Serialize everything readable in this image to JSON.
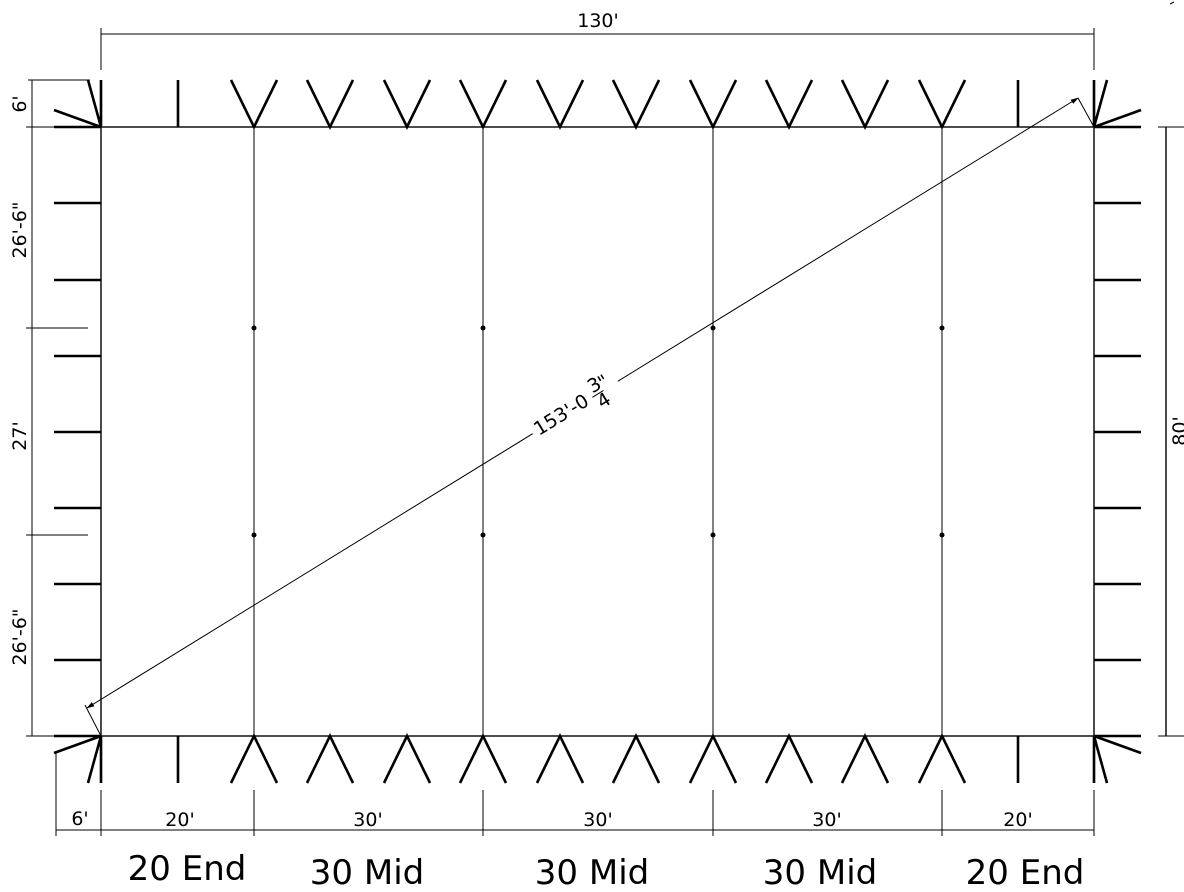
{
  "dimensions": {
    "overall_width": "130'",
    "overall_depth": "80'",
    "diagonal_main": "153'-0",
    "diagonal_fraction_num": "3",
    "diagonal_fraction_den": "4",
    "diagonal_inch_mark": "\"",
    "left_top_offset": "6'",
    "left_bottom_offset": "6'",
    "left_segments": [
      "26'-6\"",
      "27'",
      "26'-6\""
    ],
    "bottom_segments": [
      "20'",
      "30'",
      "30'",
      "30'",
      "20'"
    ]
  },
  "sections": [
    "20 End",
    "30 Mid",
    "30 Mid",
    "30 Mid",
    "20 End"
  ]
}
